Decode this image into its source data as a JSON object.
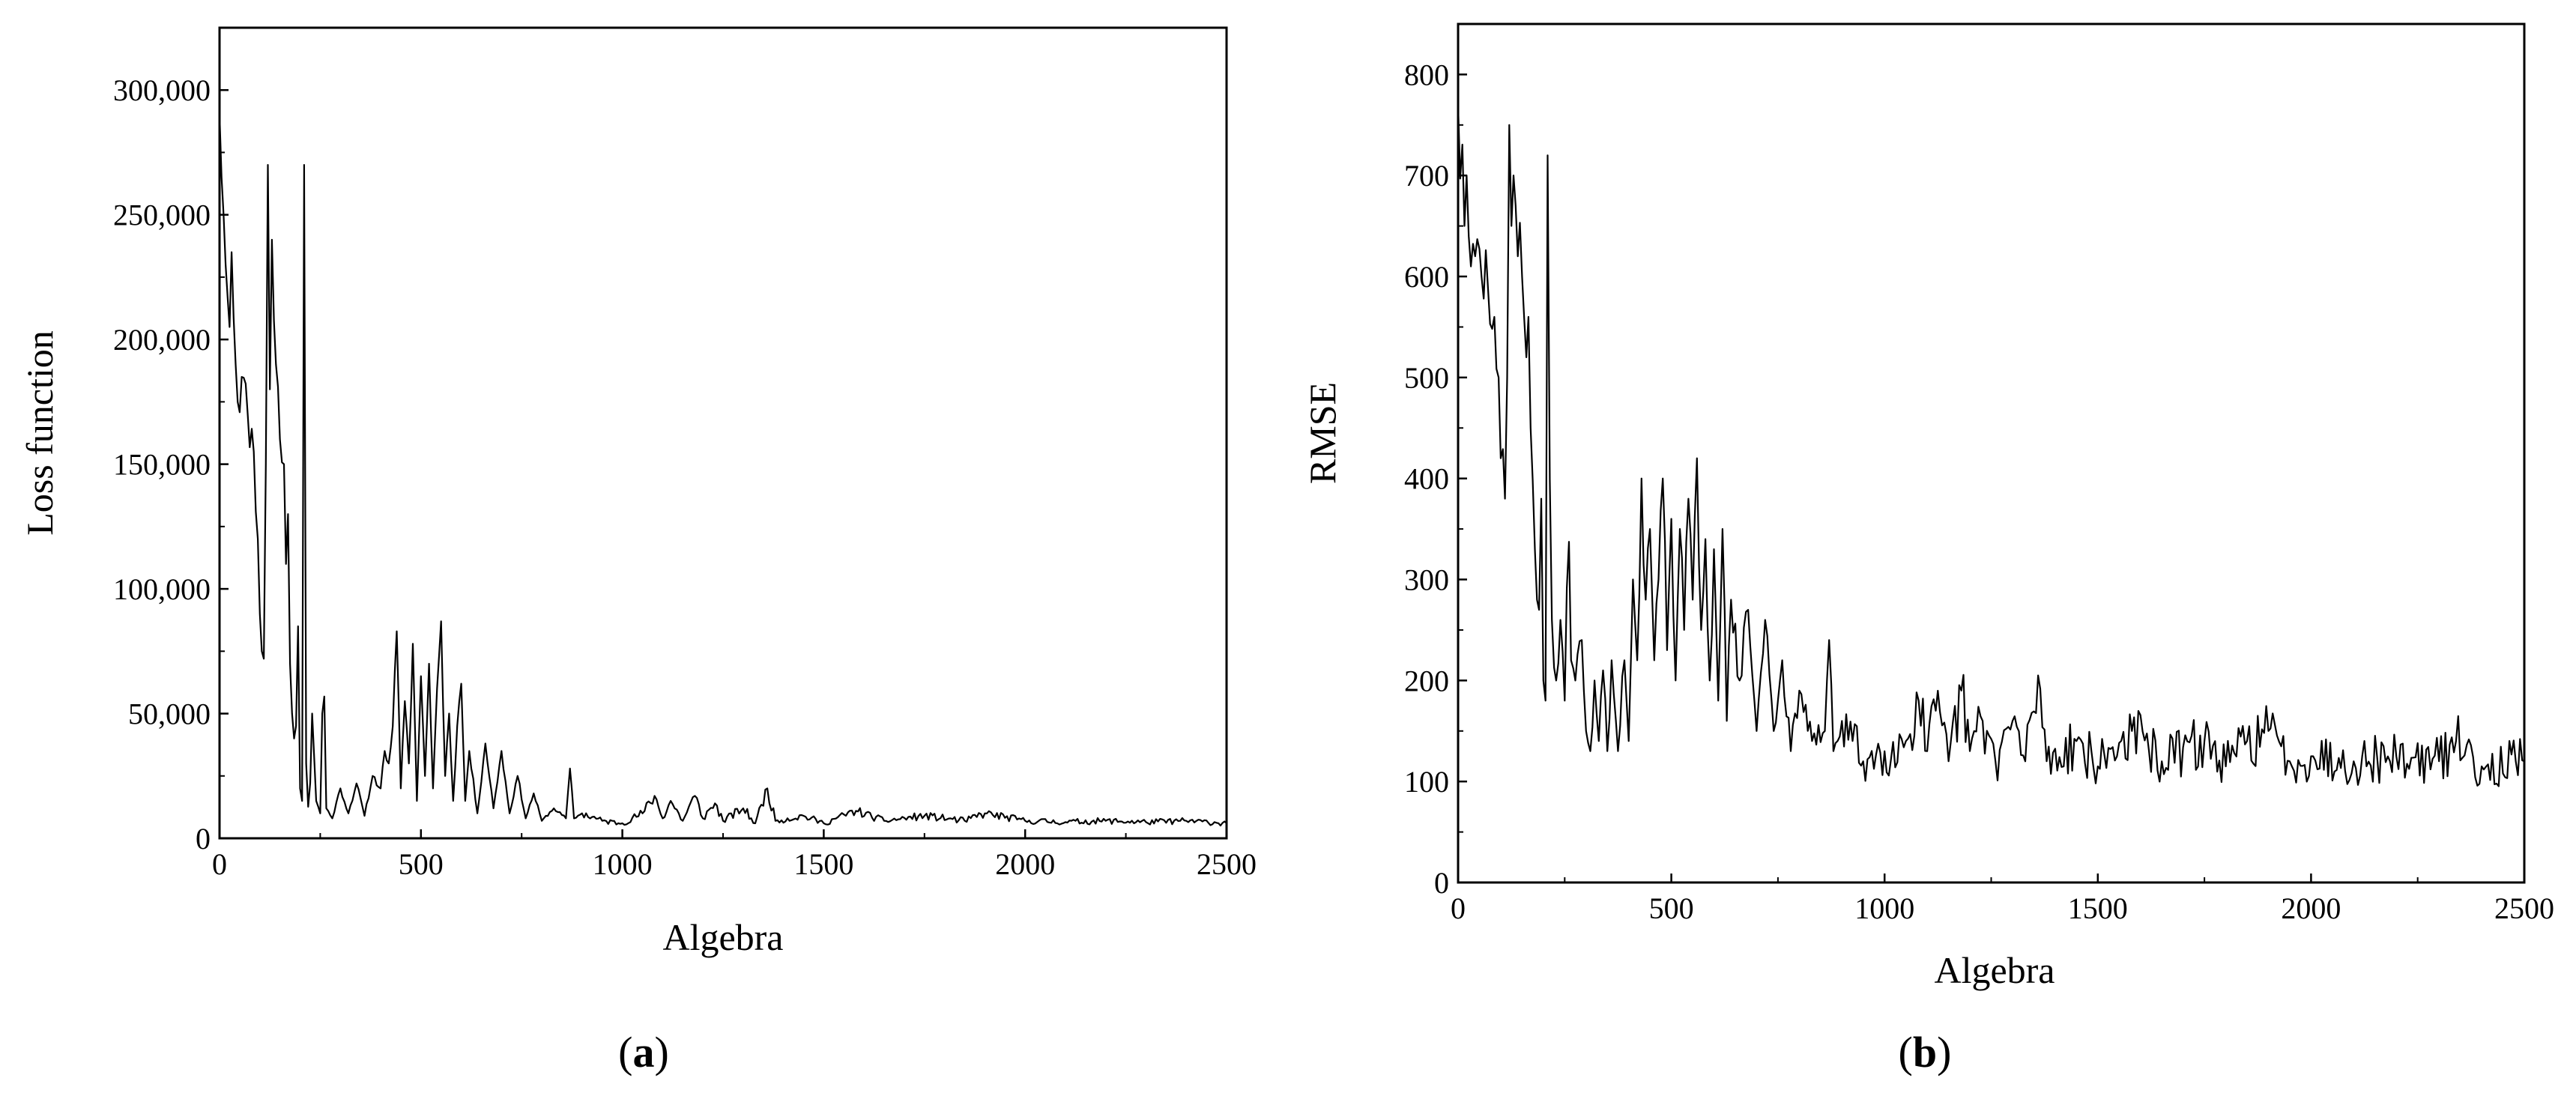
{
  "chart_data": [
    {
      "type": "line",
      "panel": "(a)",
      "panel_letter": "a",
      "xlabel": "Algebra",
      "ylabel": "Loss function",
      "xlim": [
        0,
        2500
      ],
      "ylim": [
        0,
        325000
      ],
      "xticks": [
        0,
        500,
        1000,
        1500,
        2000,
        2500
      ],
      "xtick_labels": [
        "0",
        "500",
        "1000",
        "1500",
        "2000",
        "2500"
      ],
      "yticks": [
        0,
        50000,
        100000,
        150000,
        200000,
        250000,
        300000
      ],
      "ytick_labels": [
        "0",
        "50,000",
        "100,000",
        "150,000",
        "200,000",
        "250,000",
        "300,000"
      ],
      "color": "#000000",
      "anchors": [
        [
          0,
          290000
        ],
        [
          5,
          265000
        ],
        [
          10,
          250000
        ],
        [
          18,
          230000
        ],
        [
          25,
          205000
        ],
        [
          30,
          235000
        ],
        [
          40,
          190000
        ],
        [
          45,
          175000
        ],
        [
          55,
          185000
        ],
        [
          70,
          170000
        ],
        [
          85,
          155000
        ],
        [
          95,
          120000
        ],
        [
          100,
          90000
        ],
        [
          105,
          75000
        ],
        [
          110,
          72000
        ],
        [
          115,
          150000
        ],
        [
          120,
          270000
        ],
        [
          125,
          180000
        ],
        [
          130,
          240000
        ],
        [
          140,
          190000
        ],
        [
          150,
          160000
        ],
        [
          160,
          150000
        ],
        [
          165,
          110000
        ],
        [
          170,
          130000
        ],
        [
          175,
          70000
        ],
        [
          180,
          50000
        ],
        [
          185,
          40000
        ],
        [
          190,
          45000
        ],
        [
          195,
          85000
        ],
        [
          200,
          20000
        ],
        [
          205,
          15000
        ],
        [
          210,
          270000
        ],
        [
          215,
          30000
        ],
        [
          222,
          6000
        ],
        [
          230,
          50000
        ],
        [
          240,
          15000
        ],
        [
          250,
          10000
        ],
        [
          258,
          75000
        ],
        [
          265,
          12000
        ],
        [
          280,
          8000
        ],
        [
          300,
          20000
        ],
        [
          320,
          10000
        ],
        [
          340,
          22000
        ],
        [
          360,
          9000
        ],
        [
          380,
          25000
        ],
        [
          400,
          20000
        ],
        [
          410,
          35000
        ],
        [
          420,
          30000
        ],
        [
          430,
          45000
        ],
        [
          440,
          83000
        ],
        [
          450,
          20000
        ],
        [
          460,
          55000
        ],
        [
          470,
          30000
        ],
        [
          480,
          78000
        ],
        [
          490,
          15000
        ],
        [
          500,
          65000
        ],
        [
          510,
          25000
        ],
        [
          520,
          70000
        ],
        [
          530,
          20000
        ],
        [
          540,
          60000
        ],
        [
          550,
          87000
        ],
        [
          560,
          25000
        ],
        [
          570,
          50000
        ],
        [
          580,
          15000
        ],
        [
          590,
          45000
        ],
        [
          600,
          62000
        ],
        [
          610,
          15000
        ],
        [
          620,
          35000
        ],
        [
          640,
          10000
        ],
        [
          660,
          38000
        ],
        [
          680,
          12000
        ],
        [
          700,
          35000
        ],
        [
          720,
          10000
        ],
        [
          740,
          25000
        ],
        [
          760,
          8000
        ],
        [
          780,
          18000
        ],
        [
          800,
          7000
        ],
        [
          830,
          12000
        ],
        [
          860,
          8000
        ],
        [
          870,
          28000
        ],
        [
          880,
          8000
        ],
        [
          900,
          10000
        ],
        [
          950,
          7000
        ],
        [
          1000,
          6000
        ],
        [
          1050,
          10000
        ],
        [
          1080,
          17000
        ],
        [
          1100,
          8000
        ],
        [
          1120,
          15000
        ],
        [
          1150,
          7000
        ],
        [
          1180,
          17000
        ],
        [
          1200,
          8000
        ],
        [
          1230,
          14000
        ],
        [
          1250,
          7000
        ],
        [
          1300,
          12000
        ],
        [
          1330,
          6000
        ],
        [
          1360,
          20000
        ],
        [
          1380,
          7000
        ],
        [
          1450,
          9000
        ],
        [
          1500,
          6000
        ],
        [
          1580,
          11000
        ],
        [
          1650,
          7000
        ],
        [
          1750,
          9000
        ],
        [
          1850,
          7000
        ],
        [
          1900,
          10000
        ],
        [
          2000,
          7000
        ],
        [
          2100,
          6500
        ],
        [
          2200,
          7000
        ],
        [
          2300,
          6500
        ],
        [
          2400,
          7000
        ],
        [
          2500,
          6000
        ]
      ]
    },
    {
      "type": "line",
      "panel": "(b)",
      "panel_letter": "b",
      "xlabel": "Algebra",
      "ylabel": "RMSE",
      "xlim": [
        0,
        2500
      ],
      "ylim": [
        0,
        850
      ],
      "xticks": [
        0,
        500,
        1000,
        1500,
        2000,
        2500
      ],
      "xtick_labels": [
        "0",
        "500",
        "1000",
        "1500",
        "2000",
        "2500"
      ],
      "yticks": [
        0,
        100,
        200,
        300,
        400,
        500,
        600,
        700,
        800
      ],
      "ytick_labels": [
        "0",
        "100",
        "200",
        "300",
        "400",
        "500",
        "600",
        "700",
        "800"
      ],
      "color": "#000000",
      "anchors": [
        [
          0,
          770
        ],
        [
          8,
          700
        ],
        [
          15,
          650
        ],
        [
          20,
          700
        ],
        [
          25,
          640
        ],
        [
          30,
          610
        ],
        [
          40,
          620
        ],
        [
          55,
          600
        ],
        [
          70,
          590
        ],
        [
          85,
          560
        ],
        [
          95,
          500
        ],
        [
          100,
          420
        ],
        [
          110,
          380
        ],
        [
          115,
          500
        ],
        [
          120,
          750
        ],
        [
          125,
          650
        ],
        [
          130,
          700
        ],
        [
          140,
          620
        ],
        [
          150,
          600
        ],
        [
          160,
          520
        ],
        [
          165,
          560
        ],
        [
          170,
          450
        ],
        [
          180,
          330
        ],
        [
          185,
          280
        ],
        [
          190,
          270
        ],
        [
          195,
          380
        ],
        [
          200,
          200
        ],
        [
          205,
          180
        ],
        [
          210,
          720
        ],
        [
          215,
          400
        ],
        [
          220,
          260
        ],
        [
          230,
          200
        ],
        [
          240,
          260
        ],
        [
          250,
          180
        ],
        [
          258,
          395
        ],
        [
          265,
          220
        ],
        [
          275,
          200
        ],
        [
          290,
          240
        ],
        [
          300,
          150
        ],
        [
          310,
          130
        ],
        [
          320,
          200
        ],
        [
          330,
          140
        ],
        [
          340,
          210
        ],
        [
          350,
          130
        ],
        [
          360,
          220
        ],
        [
          375,
          130
        ],
        [
          390,
          220
        ],
        [
          400,
          140
        ],
        [
          410,
          300
        ],
        [
          420,
          220
        ],
        [
          430,
          400
        ],
        [
          440,
          280
        ],
        [
          450,
          350
        ],
        [
          460,
          220
        ],
        [
          470,
          300
        ],
        [
          480,
          400
        ],
        [
          490,
          230
        ],
        [
          500,
          360
        ],
        [
          510,
          200
        ],
        [
          520,
          350
        ],
        [
          530,
          250
        ],
        [
          540,
          380
        ],
        [
          550,
          280
        ],
        [
          560,
          420
        ],
        [
          570,
          250
        ],
        [
          580,
          340
        ],
        [
          590,
          200
        ],
        [
          600,
          330
        ],
        [
          610,
          180
        ],
        [
          620,
          350
        ],
        [
          630,
          160
        ],
        [
          640,
          280
        ],
        [
          660,
          200
        ],
        [
          680,
          270
        ],
        [
          700,
          150
        ],
        [
          720,
          260
        ],
        [
          740,
          150
        ],
        [
          760,
          220
        ],
        [
          780,
          130
        ],
        [
          800,
          190
        ],
        [
          830,
          140
        ],
        [
          860,
          150
        ],
        [
          870,
          240
        ],
        [
          880,
          130
        ],
        [
          900,
          160
        ],
        [
          950,
          120
        ],
        [
          1000,
          130
        ],
        [
          1050,
          140
        ],
        [
          1080,
          180
        ],
        [
          1100,
          130
        ],
        [
          1120,
          170
        ],
        [
          1150,
          120
        ],
        [
          1180,
          190
        ],
        [
          1200,
          130
        ],
        [
          1230,
          160
        ],
        [
          1260,
          120
        ],
        [
          1300,
          160
        ],
        [
          1330,
          120
        ],
        [
          1360,
          205
        ],
        [
          1380,
          120
        ],
        [
          1450,
          140
        ],
        [
          1500,
          115
        ],
        [
          1580,
          150
        ],
        [
          1650,
          120
        ],
        [
          1750,
          140
        ],
        [
          1800,
          115
        ],
        [
          1850,
          140
        ],
        [
          1900,
          150
        ],
        [
          1950,
          120
        ],
        [
          2000,
          125
        ],
        [
          2100,
          120
        ],
        [
          2200,
          125
        ],
        [
          2300,
          120
        ],
        [
          2340,
          140
        ],
        [
          2400,
          115
        ],
        [
          2500,
          120
        ]
      ]
    }
  ]
}
